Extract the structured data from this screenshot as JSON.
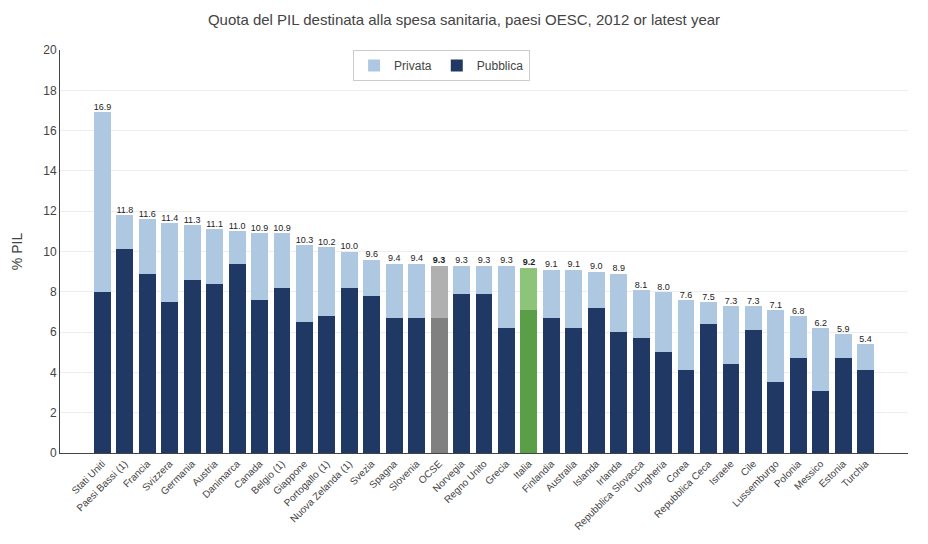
{
  "chart_data": {
    "type": "bar",
    "stacked": true,
    "title": "Quota del PIL destinata alla spesa sanitaria, paesi OESC, 2012 or latest year",
    "ylabel": "% PIL",
    "ylim": [
      0,
      20
    ],
    "yticks": [
      0,
      2,
      4,
      6,
      8,
      10,
      12,
      14,
      16,
      18,
      20
    ],
    "grid": true,
    "legend": "upper center",
    "categories": [
      "Stati Uniti",
      "Paesi Bassi (1)",
      "Francia",
      "Svizzera",
      "Germania",
      "Austria",
      "Danimarca",
      "Canada",
      "Belgio (1)",
      "Giappone",
      "Portogallo (1)",
      "Nuova Zelanda (1)",
      "Svezia",
      "Spagna",
      "Slovenia",
      "OCSE",
      "Norvegia",
      "Regno Unito",
      "Grecia",
      "Italia",
      "Finlandia",
      "Australia",
      "Islanda",
      "Irlanda",
      "Repubblica Slovacca",
      "Ungheria",
      "Corea",
      "Repubblica Ceca",
      "Israele",
      "Cile",
      "Lussemburgo",
      "Polonia",
      "Messico",
      "Estonia",
      "Turchia"
    ],
    "series": [
      {
        "name": "Pubblica",
        "color": "#1f3864",
        "values": [
          8.0,
          10.1,
          8.9,
          7.5,
          8.6,
          8.4,
          9.4,
          7.6,
          8.2,
          6.5,
          6.8,
          8.2,
          7.8,
          6.7,
          6.7,
          6.7,
          7.9,
          7.9,
          6.2,
          7.1,
          6.7,
          6.2,
          7.2,
          6.0,
          5.7,
          5.0,
          4.1,
          6.4,
          4.4,
          6.1,
          3.5,
          4.7,
          3.1,
          4.7,
          4.1
        ],
        "colors": [
          "#1f3864",
          "#1f3864",
          "#1f3864",
          "#1f3864",
          "#1f3864",
          "#1f3864",
          "#1f3864",
          "#1f3864",
          "#1f3864",
          "#1f3864",
          "#1f3864",
          "#1f3864",
          "#1f3864",
          "#1f3864",
          "#1f3864",
          "#808080",
          "#1f3864",
          "#1f3864",
          "#1f3864",
          "#5a9e48",
          "#1f3864",
          "#1f3864",
          "#1f3864",
          "#1f3864",
          "#1f3864",
          "#1f3864",
          "#1f3864",
          "#1f3864",
          "#1f3864",
          "#1f3864",
          "#1f3864",
          "#1f3864",
          "#1f3864",
          "#1f3864",
          "#1f3864"
        ]
      },
      {
        "name": "Privata",
        "color": "#adc8e0",
        "values": [
          8.9,
          1.7,
          2.7,
          3.9,
          2.7,
          2.7,
          1.6,
          3.3,
          2.7,
          3.8,
          3.4,
          1.8,
          1.8,
          2.7,
          2.7,
          2.6,
          1.4,
          1.4,
          3.1,
          2.1,
          2.4,
          2.9,
          1.8,
          2.9,
          2.4,
          3.0,
          3.5,
          1.1,
          2.9,
          1.2,
          3.6,
          2.1,
          3.1,
          1.2,
          1.3
        ],
        "colors": [
          "#adc8e0",
          "#adc8e0",
          "#adc8e0",
          "#adc8e0",
          "#adc8e0",
          "#adc8e0",
          "#adc8e0",
          "#adc8e0",
          "#adc8e0",
          "#adc8e0",
          "#adc8e0",
          "#adc8e0",
          "#adc8e0",
          "#adc8e0",
          "#adc8e0",
          "#b0b0b0",
          "#adc8e0",
          "#adc8e0",
          "#adc8e0",
          "#8dc47a",
          "#adc8e0",
          "#adc8e0",
          "#adc8e0",
          "#adc8e0",
          "#adc8e0",
          "#adc8e0",
          "#adc8e0",
          "#adc8e0",
          "#adc8e0",
          "#adc8e0",
          "#adc8e0",
          "#adc8e0",
          "#adc8e0",
          "#adc8e0",
          "#adc8e0"
        ]
      }
    ],
    "totals": [
      16.9,
      11.8,
      11.6,
      11.4,
      11.3,
      11.1,
      11.0,
      10.9,
      10.9,
      10.3,
      10.2,
      10.0,
      9.6,
      9.4,
      9.4,
      9.3,
      9.3,
      9.3,
      9.3,
      9.2,
      9.1,
      9.1,
      9.0,
      8.9,
      8.1,
      8.0,
      7.6,
      7.5,
      7.3,
      7.3,
      7.1,
      6.8,
      6.2,
      5.9,
      5.4
    ],
    "total_labels": [
      "16.9",
      "11.8",
      "11.6",
      "11.4",
      "11.3",
      "11.1",
      "11.0",
      "10.9",
      "10.9",
      "10.3",
      "10.2",
      "10.0",
      "9.6",
      "9.4",
      "9.4",
      "9.3",
      "9.3",
      "9.3",
      "9.3",
      "9.2",
      "9.1",
      "9.1",
      "9.0",
      "8.9",
      "8.1",
      "8.0",
      "7.6",
      "7.5",
      "7.3",
      "7.3",
      "7.1",
      "6.8",
      "6.2",
      "5.9",
      "5.4"
    ]
  }
}
